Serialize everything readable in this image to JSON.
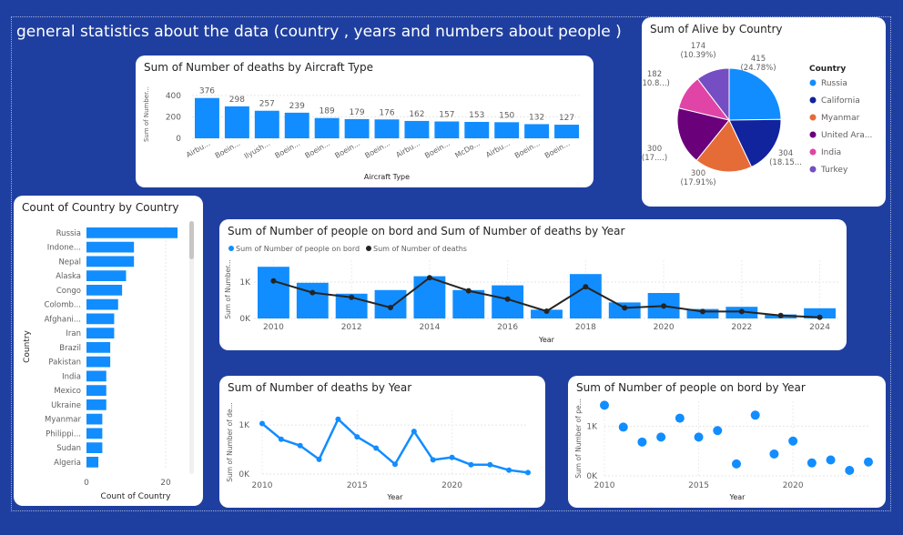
{
  "page_title": "general statistics about the data (country , years and numbers about people  )",
  "colors": {
    "accent": "#118DFF",
    "line": "#252423",
    "background": "#1f3fa0"
  },
  "chart_data": [
    {
      "id": "deaths_by_aircraft",
      "type": "bar",
      "title": "Sum of Number of deaths by Aircraft Type",
      "xlabel": "Aircraft Type",
      "ylabel": "Sum of Number...",
      "categories": [
        "Airbu...",
        "Boein...",
        "Ilyush...",
        "Boein...",
        "Boein...",
        "Boein...",
        "Boein...",
        "Airbu...",
        "Boein...",
        "McDo...",
        "Airbu...",
        "Boein...",
        "Boein..."
      ],
      "values": [
        376,
        298,
        257,
        239,
        189,
        179,
        176,
        162,
        157,
        153,
        150,
        132,
        127
      ],
      "yticks": [
        "0",
        "200",
        "400"
      ],
      "ylim": [
        0,
        450
      ]
    },
    {
      "id": "alive_by_country",
      "type": "pie",
      "title": "Sum of Alive by Country",
      "legend_title": "Country",
      "legend_position": "right",
      "slices": [
        {
          "name": "Russia",
          "value": 415,
          "label_value": "415",
          "label_pct": "(24.78%)",
          "color": "#118DFF"
        },
        {
          "name": "California",
          "value": 304,
          "label_value": "304",
          "label_pct": "(18.15...",
          "color": "#12239E"
        },
        {
          "name": "Myanmar",
          "value": 300,
          "label_value": "300",
          "label_pct": "(17.91%)",
          "color": "#E66C37"
        },
        {
          "name": "United Ara...",
          "value": 300,
          "label_value": "300",
          "label_pct": "(17....)",
          "color": "#6B007B"
        },
        {
          "name": "India",
          "value": 182,
          "label_value": "182",
          "label_pct": "(10.8...)",
          "color": "#E044A7"
        },
        {
          "name": "Turkey",
          "value": 174,
          "label_value": "174",
          "label_pct": "(10.39%)",
          "color": "#744EC2"
        }
      ]
    },
    {
      "id": "count_by_country",
      "type": "bar",
      "orientation": "horizontal",
      "title": "Count of Country by Country",
      "xlabel": "Count of Country",
      "ylabel": "Country",
      "categories": [
        "Russia",
        "Indone...",
        "Nepal",
        "Alaska",
        "Congo",
        "Colomb...",
        "Afghani...",
        "Iran",
        "Brazil",
        "Pakistan",
        "India",
        "Mexico",
        "Ukraine",
        "Myanmar",
        "Philippi...",
        "Sudan",
        "Algeria"
      ],
      "values": [
        23,
        12,
        12,
        10,
        9,
        8,
        7,
        7,
        6,
        6,
        5,
        5,
        5,
        4,
        4,
        4,
        3
      ],
      "xticks": [
        "0",
        "20"
      ],
      "xlim": [
        0,
        23
      ]
    },
    {
      "id": "people_and_deaths_by_year",
      "type": "bar",
      "title": "Sum of Number of people on bord and Sum of Number of deaths by Year",
      "xlabel": "Year",
      "ylabel": "Sum of Number...",
      "legend_position": "top-left",
      "x": [
        2010,
        2011,
        2012,
        2013,
        2014,
        2015,
        2016,
        2017,
        2018,
        2019,
        2020,
        2021,
        2022,
        2023,
        2024
      ],
      "series": [
        {
          "name": "Sum of Number of people on bord",
          "kind": "bar",
          "values": [
            1420,
            980,
            680,
            780,
            1160,
            780,
            910,
            240,
            1220,
            440,
            700,
            260,
            320,
            110,
            280
          ]
        },
        {
          "name": "Sum of Number of deaths",
          "kind": "line",
          "values": [
            1030,
            710,
            580,
            300,
            1120,
            760,
            530,
            200,
            870,
            290,
            340,
            190,
            190,
            80,
            30
          ]
        }
      ],
      "xticks": [
        "2010",
        "2012",
        "2014",
        "2016",
        "2018",
        "2020",
        "2022",
        "2024"
      ],
      "yticks": [
        "0K",
        "1K"
      ],
      "ylim": [
        0,
        1600
      ]
    },
    {
      "id": "deaths_by_year",
      "type": "line",
      "title": "Sum of Number of deaths by Year",
      "xlabel": "Year",
      "ylabel": "Sum of Number of de...",
      "x": [
        2010,
        2011,
        2012,
        2013,
        2014,
        2015,
        2016,
        2017,
        2018,
        2019,
        2020,
        2021,
        2022,
        2023,
        2024
      ],
      "values": [
        1030,
        710,
        580,
        300,
        1120,
        760,
        530,
        200,
        870,
        290,
        340,
        190,
        190,
        80,
        30
      ],
      "xticks": [
        "2010",
        "2015",
        "2020"
      ],
      "yticks": [
        "0K",
        "1K"
      ],
      "ylim": [
        0,
        1300
      ]
    },
    {
      "id": "people_by_year",
      "type": "scatter",
      "title": "Sum of Number of people on bord by Year",
      "xlabel": "Year",
      "ylabel": "Sum of Number of pe...",
      "x": [
        2010,
        2011,
        2012,
        2013,
        2014,
        2015,
        2016,
        2017,
        2018,
        2019,
        2020,
        2021,
        2022,
        2023,
        2024
      ],
      "values": [
        1420,
        980,
        680,
        780,
        1160,
        780,
        910,
        240,
        1220,
        440,
        700,
        260,
        320,
        110,
        280
      ],
      "xticks": [
        "2010",
        "2015",
        "2020"
      ],
      "yticks": [
        "0K",
        "1K"
      ],
      "ylim": [
        0,
        1500
      ]
    }
  ]
}
